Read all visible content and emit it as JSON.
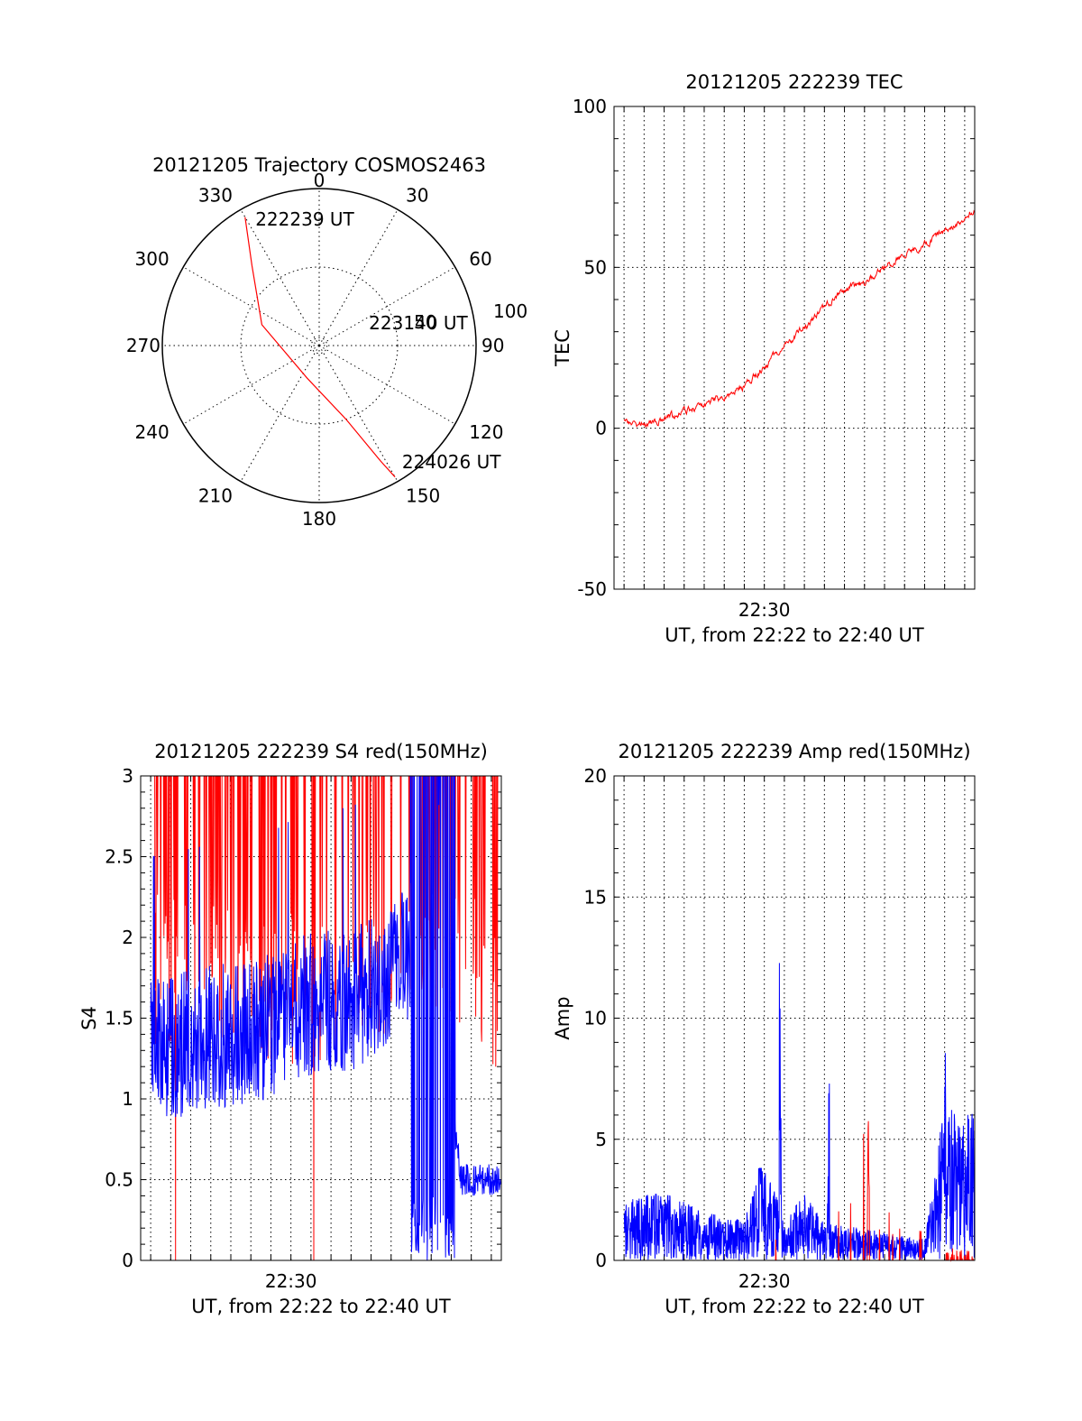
{
  "chart_data": [
    {
      "id": "trajectory",
      "type": "polar",
      "title": "20121205 Trajectory COSMOS2463",
      "angle_labels": [
        "0",
        "30",
        "60",
        "90",
        "120",
        "150",
        "180",
        "210",
        "240",
        "270",
        "300",
        "330"
      ],
      "radial_ring_labels": [
        "50",
        "100"
      ],
      "series": [
        {
          "color": "#ff0000",
          "points": [
            {
              "azimuth": 330,
              "elevation": 5
            },
            {
              "azimuth": 320,
              "elevation": 30
            },
            {
              "azimuth": 290,
              "elevation": 55
            },
            {
              "azimuth": 200,
              "elevation": 70
            },
            {
              "azimuth": 160,
              "elevation": 45
            },
            {
              "azimuth": 152,
              "elevation": 15
            },
            {
              "azimuth": 150,
              "elevation": 3
            }
          ]
        }
      ],
      "annotations": [
        {
          "text": "222239 UT",
          "azimuth": 332,
          "elevation": 12
        },
        {
          "text": "223140 UT",
          "azimuth": 72,
          "elevation": 60
        },
        {
          "text": "224026 UT",
          "azimuth": 146,
          "elevation": 5
        }
      ]
    },
    {
      "id": "tec",
      "type": "line",
      "title": "20121205 222239 TEC",
      "ylabel": "TEC",
      "xlabel": "UT, from 22:22 to 22:40 UT",
      "x_tick_label": "22:30",
      "ylim": [
        -50,
        100
      ],
      "yticks": [
        "-50",
        "0",
        "50",
        "100"
      ],
      "xlim_minutes": [
        22.5,
        40.5
      ],
      "grid": true,
      "series": [
        {
          "color": "#ff0000",
          "x": [
            23.0,
            24.0,
            25.0,
            26.0,
            27.0,
            28.0,
            29.0,
            30.0,
            31.0,
            32.0,
            33.0,
            34.0,
            35.0,
            36.0,
            37.0,
            38.0,
            39.0,
            40.0,
            40.5
          ],
          "values": [
            2,
            1,
            3,
            5,
            7,
            10,
            13,
            19,
            26,
            31,
            38,
            43,
            45,
            50,
            54,
            57,
            61,
            65,
            68
          ]
        }
      ]
    },
    {
      "id": "s4",
      "type": "line",
      "title": "20121205 222239 S4 red(150MHz)",
      "ylabel": "S4",
      "xlabel": "UT, from 22:22 to 22:40 UT",
      "x_tick_label": "22:30",
      "ylim": [
        0,
        3
      ],
      "yticks": [
        "0",
        "0.5",
        "1",
        "1.5",
        "2",
        "2.5",
        "3"
      ],
      "xlim_minutes": [
        22.5,
        40.5
      ],
      "grid": true,
      "series": [
        {
          "color": "#ff0000",
          "x": [
            23.0,
            25.0,
            27.0,
            29.0,
            31.0,
            33.0,
            35.0,
            37.0,
            39.0,
            40.5
          ],
          "values": [
            2.6,
            2.5,
            2.6,
            2.4,
            2.5,
            2.5,
            2.7,
            2.9,
            2.6,
            2.3
          ]
        },
        {
          "color": "#0000ff",
          "x": [
            23.0,
            25.0,
            27.0,
            29.0,
            31.0,
            33.0,
            35.0,
            37.0,
            38.5,
            39.5,
            40.5
          ],
          "values": [
            1.3,
            1.35,
            1.4,
            1.45,
            1.6,
            1.6,
            1.8,
            2.0,
            0.5,
            0.5,
            0.5
          ]
        }
      ]
    },
    {
      "id": "amp",
      "type": "line",
      "title": "20121205 222239 Amp red(150MHz)",
      "ylabel": "Amp",
      "xlabel": "UT, from 22:22 to 22:40 UT",
      "x_tick_label": "22:30",
      "ylim": [
        0,
        20
      ],
      "yticks": [
        "0",
        "5",
        "10",
        "15",
        "20"
      ],
      "xlim_minutes": [
        22.5,
        40.5
      ],
      "grid": true,
      "series": [
        {
          "color": "#0000ff",
          "x": [
            23.0,
            25.0,
            27.0,
            29.0,
            30.0,
            31.0,
            32.0,
            33.0,
            35.0,
            37.0,
            38.0,
            39.0,
            40.5
          ],
          "values": [
            2.3,
            2.6,
            1.8,
            1.5,
            3.8,
            1.5,
            2.5,
            1.4,
            1.2,
            0.9,
            0.8,
            6.0,
            5.5
          ]
        },
        {
          "color": "#ff0000",
          "x": [
            30.5,
            32.5,
            34.5,
            36.0,
            38.0
          ],
          "values": [
            1.0,
            0.9,
            6.8,
            2.3,
            0.3
          ]
        }
      ]
    }
  ]
}
